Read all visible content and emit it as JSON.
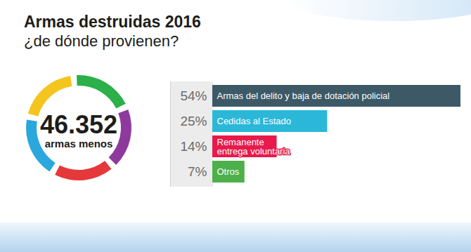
{
  "chart_data": {
    "type": "bar",
    "title": "Armas destruidas 2016",
    "subtitle": "¿de dónde provienen?",
    "annotations": [
      "46.352",
      "armas menos"
    ],
    "orientation": "horizontal",
    "categories": [
      "Armas del delito y baja de dotación policial",
      "Cedidas al Estado",
      "Remanente\nentrega voluntaria",
      "Otros"
    ],
    "values": [
      54,
      25,
      14,
      7
    ],
    "value_labels": [
      "54%",
      "25%",
      "14%",
      "7%"
    ],
    "colors": [
      "#3d5966",
      "#2bb8d8",
      "#e8194b",
      "#4db04a"
    ],
    "data_labels": true,
    "tick_labels": false
  }
}
